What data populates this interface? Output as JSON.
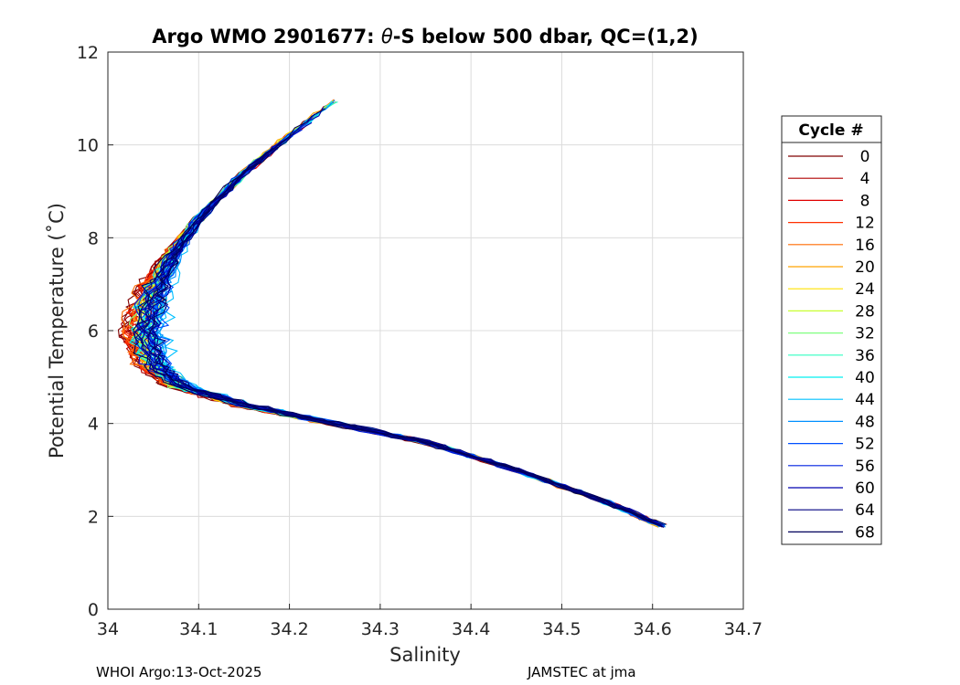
{
  "chart_data": {
    "type": "line",
    "title_prefix": "Argo WMO 2901677: ",
    "title_theta": "θ",
    "title_suffix": "-S below 500 dbar,  QC=(1,2)",
    "xlabel": "Salinity",
    "ylabel": "Potential Temperature (˚C)",
    "xlim": [
      34.0,
      34.7
    ],
    "ylim": [
      0,
      12
    ],
    "xticks": [
      "34",
      "34.1",
      "34.2",
      "34.3",
      "34.4",
      "34.5",
      "34.6",
      "34.7"
    ],
    "yticks": [
      "0",
      "2",
      "4",
      "6",
      "8",
      "10",
      "12"
    ],
    "grid": true,
    "legend_title": "Cycle #",
    "legend_position": "right",
    "legend": [
      {
        "label": "0",
        "color": "#800000"
      },
      {
        "label": "4",
        "color": "#b00000"
      },
      {
        "label": "8",
        "color": "#e00000"
      },
      {
        "label": "12",
        "color": "#ff3000"
      },
      {
        "label": "16",
        "color": "#ff6a00"
      },
      {
        "label": "20",
        "color": "#ffa500"
      },
      {
        "label": "24",
        "color": "#ffe000"
      },
      {
        "label": "28",
        "color": "#c8ff30"
      },
      {
        "label": "32",
        "color": "#80ff80"
      },
      {
        "label": "36",
        "color": "#30ffc0"
      },
      {
        "label": "40",
        "color": "#00f0f0"
      },
      {
        "label": "44",
        "color": "#00c0ff"
      },
      {
        "label": "48",
        "color": "#0090ff"
      },
      {
        "label": "52",
        "color": "#0050ff"
      },
      {
        "label": "56",
        "color": "#0020e0"
      },
      {
        "label": "60",
        "color": "#0000b0"
      },
      {
        "label": "64",
        "color": "#000080"
      },
      {
        "label": "68",
        "color": "#00005a"
      }
    ],
    "profile_shape": {
      "description_points": [
        [
          34.61,
          1.8
        ],
        [
          34.55,
          2.3
        ],
        [
          34.45,
          3.0
        ],
        [
          34.35,
          3.6
        ],
        [
          34.25,
          4.0
        ],
        [
          34.15,
          4.4
        ],
        [
          34.08,
          4.8
        ],
        [
          34.05,
          5.3
        ],
        [
          34.04,
          6.0
        ],
        [
          34.05,
          6.8
        ],
        [
          34.07,
          7.6
        ],
        [
          34.1,
          8.4
        ],
        [
          34.15,
          9.4
        ],
        [
          34.2,
          10.2
        ],
        [
          34.26,
          11.1
        ]
      ]
    },
    "footer_left": "WHOI Argo:13-Oct-2025",
    "footer_right": "JAMSTEC at jma"
  }
}
